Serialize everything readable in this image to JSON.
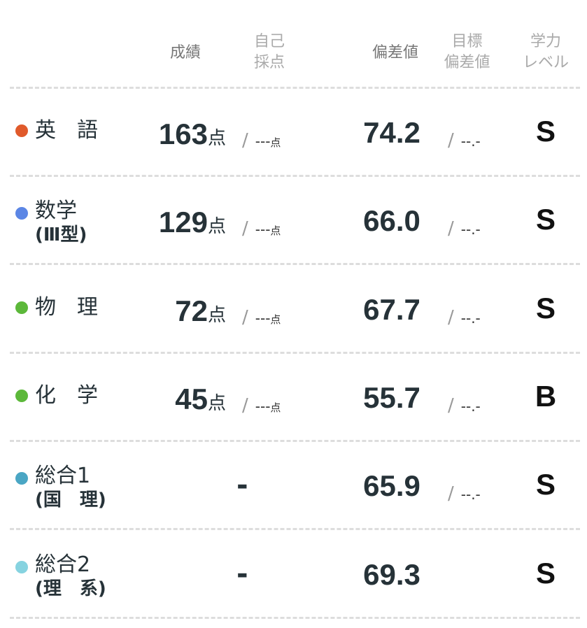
{
  "headers": {
    "score": "成績",
    "self_1": "自己",
    "self_2": "採点",
    "deviation": "偏差値",
    "target_1": "目標",
    "target_2": "偏差値",
    "level_1": "学力",
    "level_2": "レベル"
  },
  "rows": [
    {
      "name": "英　語",
      "sub": "",
      "color": "#e05a2b",
      "score": "163",
      "unit": "点",
      "self": "---",
      "self_unit": "点",
      "deviation": "74.2",
      "target": "--.-",
      "level": "S"
    },
    {
      "name": "数学",
      "sub": "(Ⅲ型)",
      "color": "#5b86e5",
      "score": "129",
      "unit": "点",
      "self": "---",
      "self_unit": "点",
      "deviation": "66.0",
      "target": "--.-",
      "level": "S"
    },
    {
      "name": "物　理",
      "sub": "",
      "color": "#5cb83a",
      "score": "72",
      "unit": "点",
      "self": "---",
      "self_unit": "点",
      "deviation": "67.7",
      "target": "--.-",
      "level": "S"
    },
    {
      "name": "化　学",
      "sub": "",
      "color": "#5cb83a",
      "score": "45",
      "unit": "点",
      "self": "---",
      "self_unit": "点",
      "deviation": "55.7",
      "target": "--.-",
      "level": "B"
    },
    {
      "name": "総合1",
      "sub": "(国　理)",
      "color": "#4aa6c4",
      "score": "-",
      "deviation": "65.9",
      "target": "--.-",
      "level": "S"
    },
    {
      "name": "総合2",
      "sub": "(理　系)",
      "color": "#86d3e0",
      "score": "-",
      "deviation": "69.3",
      "level": "S"
    }
  ]
}
